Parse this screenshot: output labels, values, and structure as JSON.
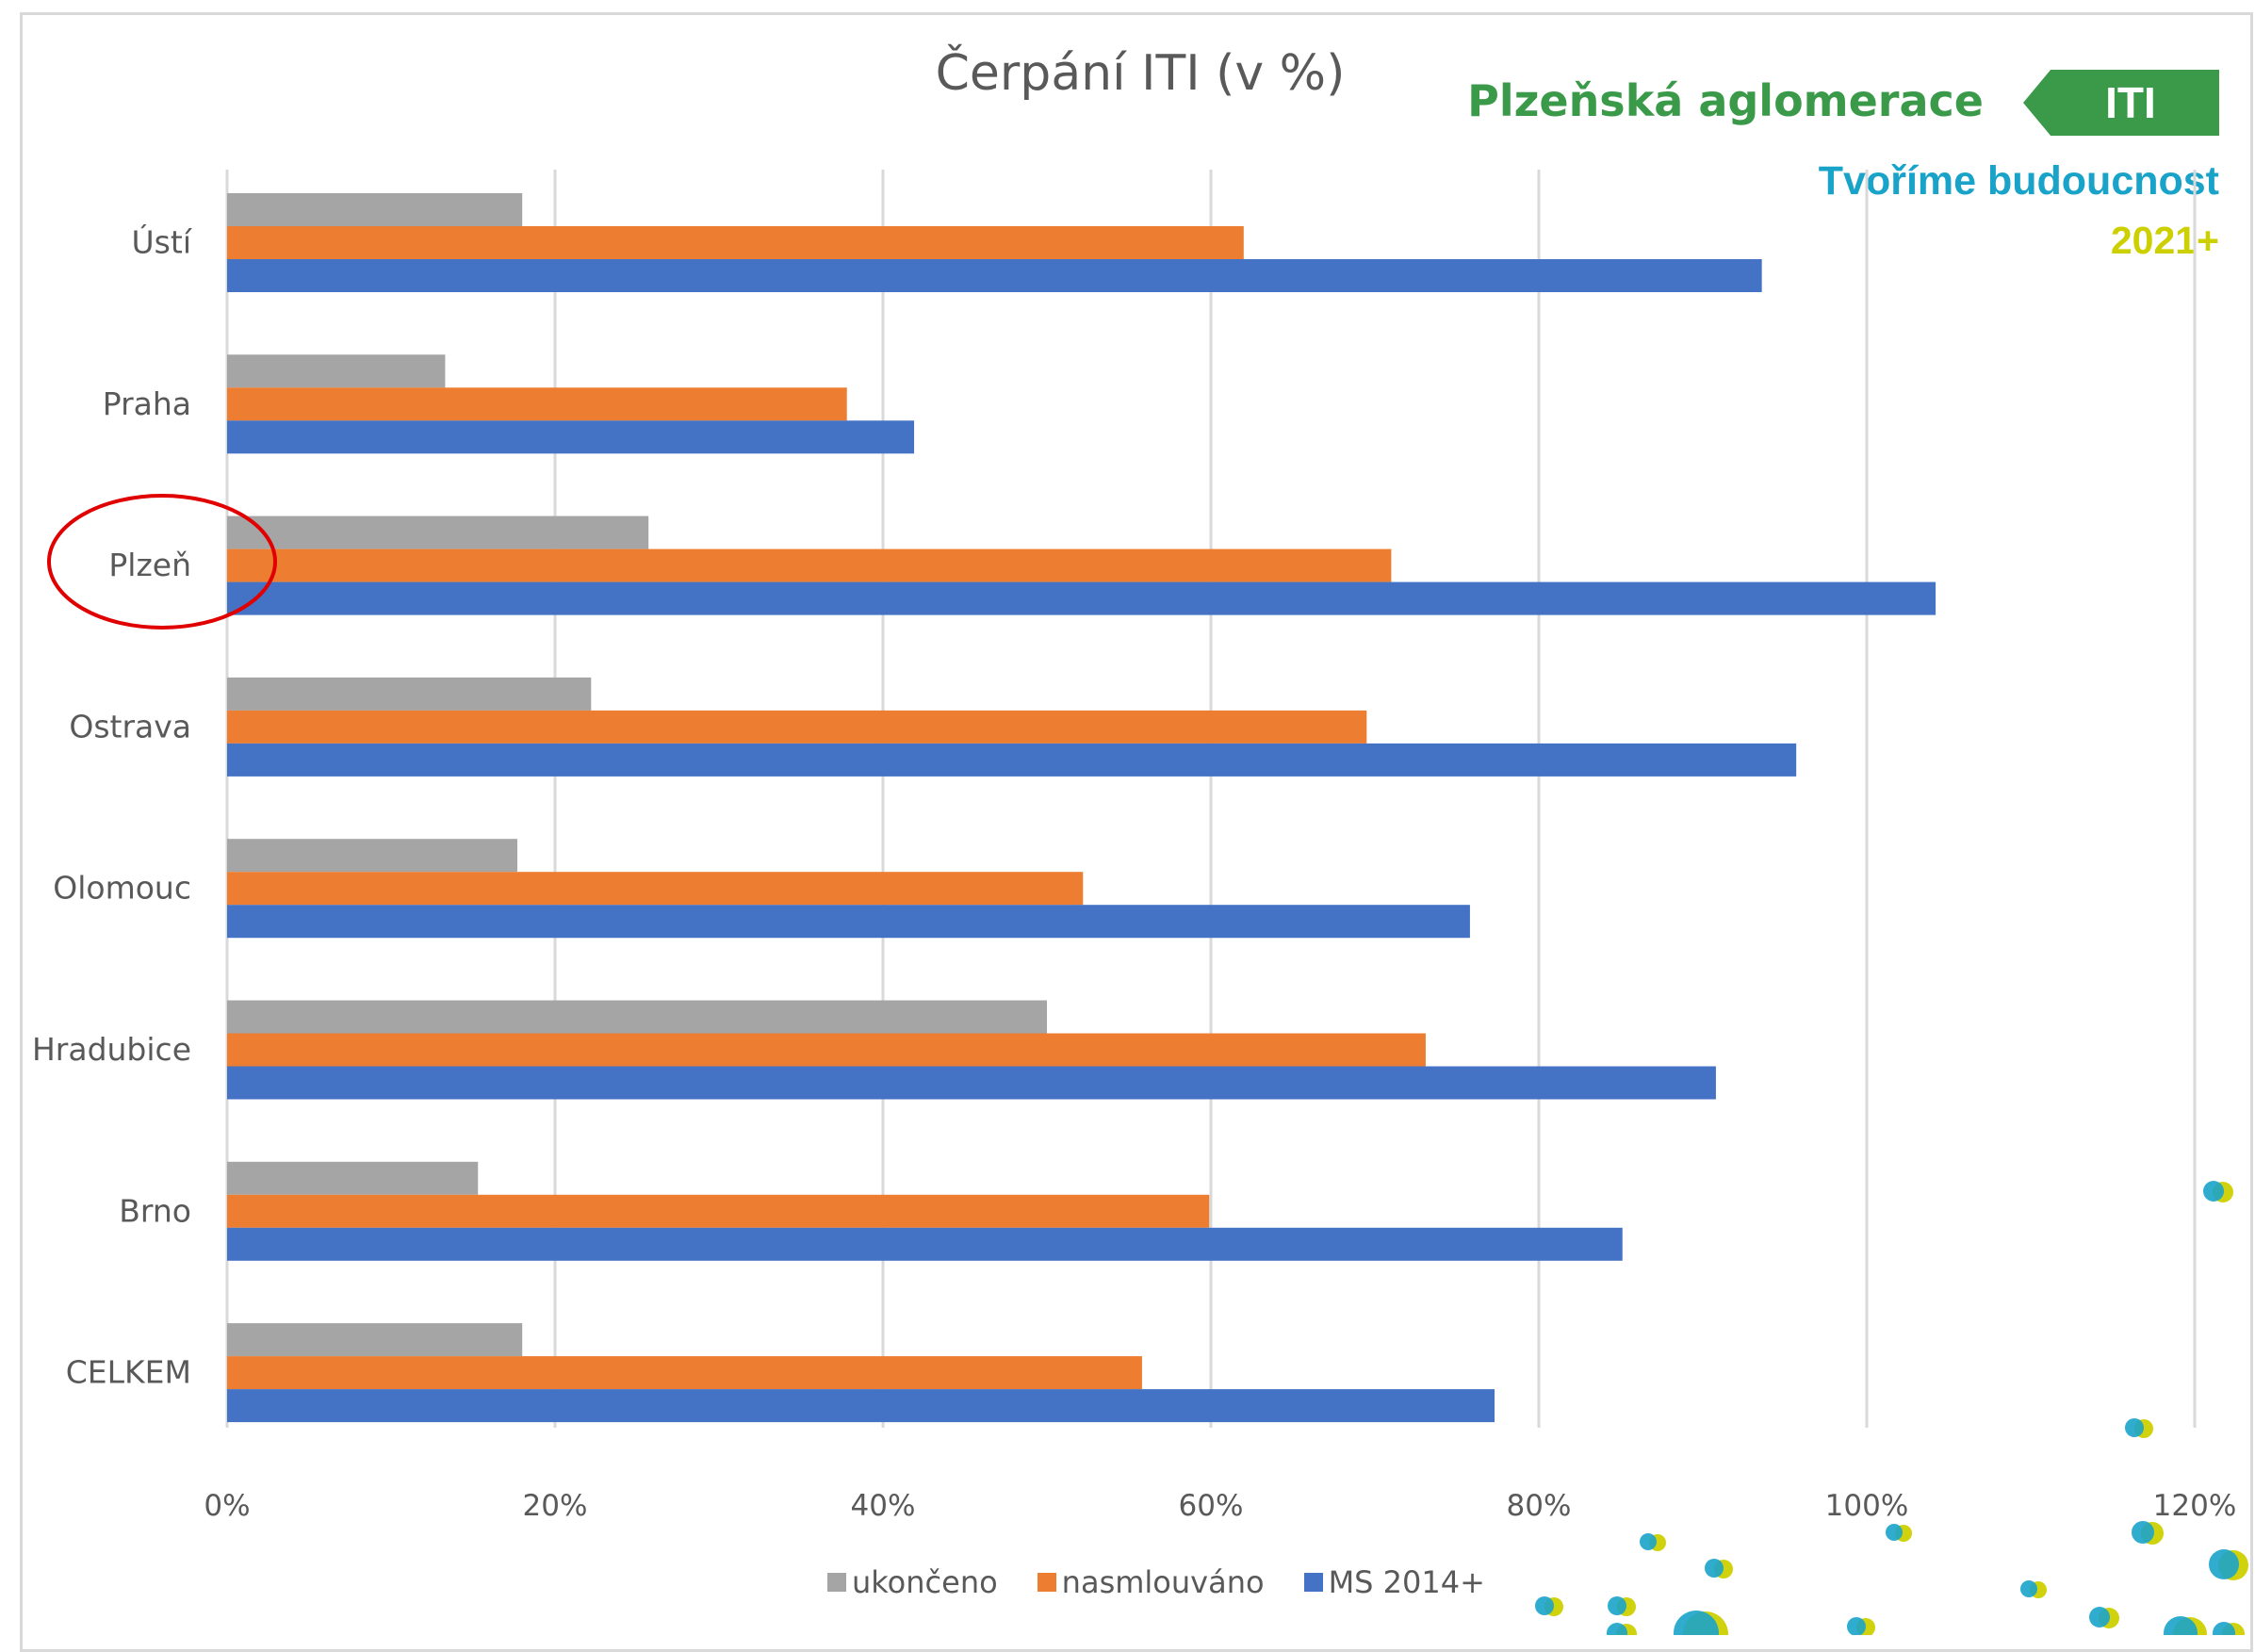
{
  "brand": {
    "name": "Plzeňská aglomerace",
    "tag": "ITI",
    "slogan": "Tvoříme budoucnost",
    "year": "2021+"
  },
  "colors": {
    "ukonceno": "#a5a5a5",
    "nasmlouvano": "#ed7d31",
    "ms": "#4472c4",
    "grid": "#d9d9d9",
    "highlight": "#e00000"
  },
  "chart_data": {
    "type": "bar",
    "orientation": "horizontal",
    "title": "Čerpání ITI (v %)",
    "categories": [
      "Ústí",
      "Praha",
      "Plzeň",
      "Ostrava",
      "Olomouc",
      "Hradubice",
      "Brno",
      "CELKEM"
    ],
    "series": [
      {
        "name": "ukončeno",
        "values": [
          18,
          13.3,
          25.7,
          22.2,
          17.7,
          50,
          15.3,
          18
        ]
      },
      {
        "name": "nasmlouváno",
        "values": [
          62,
          37.8,
          71,
          69.5,
          52.2,
          73.1,
          59.9,
          55.8
        ]
      },
      {
        "name": "MS 2014+",
        "values": [
          93.6,
          41.9,
          104.2,
          95.7,
          75.8,
          90.8,
          85.1,
          77.3
        ]
      }
    ],
    "xlim": [
      0,
      120
    ],
    "xticks": [
      "0%",
      "20%",
      "40%",
      "60%",
      "80%",
      "100%",
      "120%"
    ],
    "grid": true,
    "legend": "bottom",
    "highlighted_category": "Plzeň"
  }
}
